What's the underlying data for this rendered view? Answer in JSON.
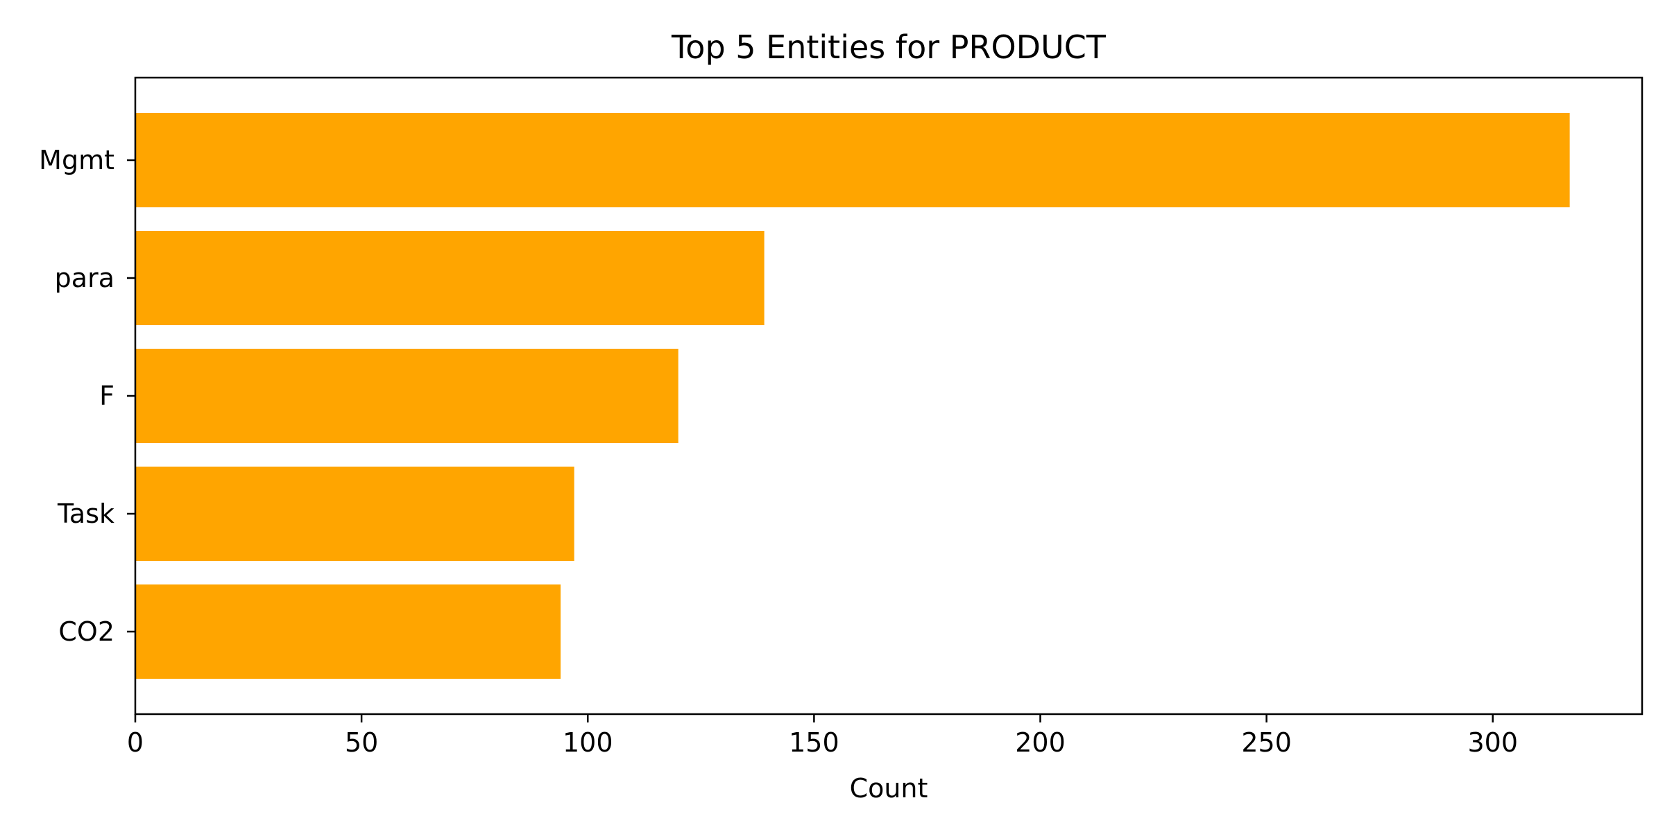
{
  "chart_data": {
    "type": "bar",
    "orientation": "horizontal",
    "title": "Top 5 Entities for PRODUCT",
    "xlabel": "Count",
    "ylabel": "",
    "categories": [
      "Mgmt",
      "para",
      "F",
      "Task",
      "CO2"
    ],
    "values": [
      317,
      139,
      120,
      97,
      94
    ],
    "xlim": [
      0,
      333
    ],
    "xticks": [
      0,
      50,
      100,
      150,
      200,
      250,
      300
    ],
    "grid": false,
    "legend": "none",
    "bar_color": "#ffa500"
  }
}
